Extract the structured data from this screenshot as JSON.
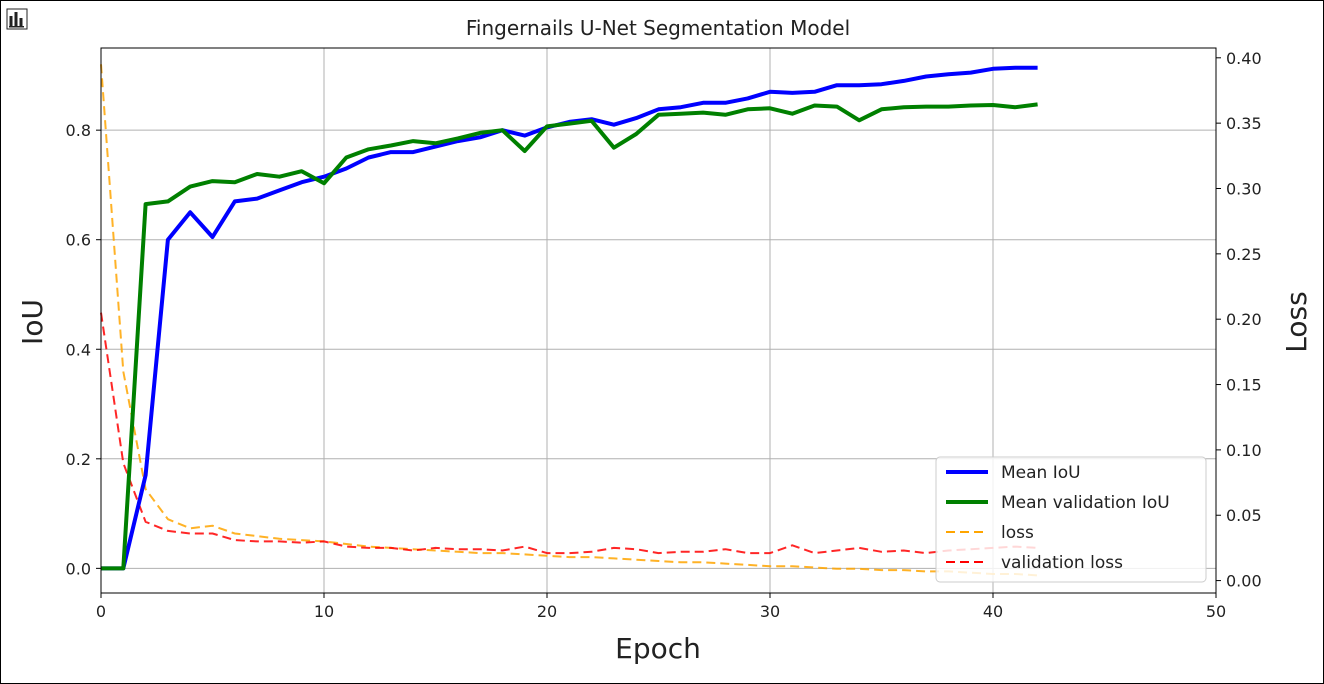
{
  "chart_data": {
    "type": "line",
    "title": "Fingernails U-Net Segmentation Model",
    "xlabel": "Epoch",
    "ylabel_left": "IoU",
    "ylabel_right": "Loss",
    "xlim": [
      0,
      50
    ],
    "ylim_left": [
      -0.045,
      0.95
    ],
    "ylim_right": [
      -0.0095,
      0.4075
    ],
    "x_ticks": [
      "0",
      "10",
      "20",
      "30",
      "40",
      "50"
    ],
    "y_ticks_left": [
      "0.0",
      "0.2",
      "0.4",
      "0.6",
      "0.8"
    ],
    "y_ticks_right": [
      "0.00",
      "0.05",
      "0.10",
      "0.15",
      "0.20",
      "0.25",
      "0.30",
      "0.35",
      "0.40"
    ],
    "grid": true,
    "legend_position": "lower-right",
    "x": [
      0,
      1,
      2,
      3,
      4,
      5,
      6,
      7,
      8,
      9,
      10,
      11,
      12,
      13,
      14,
      15,
      16,
      17,
      18,
      19,
      20,
      21,
      22,
      23,
      24,
      25,
      26,
      27,
      28,
      29,
      30,
      31,
      32,
      33,
      34,
      35,
      36,
      37,
      38,
      39,
      40,
      41,
      42
    ],
    "series": [
      {
        "name": "Mean IoU",
        "axis": "left",
        "color": "#0000ff",
        "style": "solid",
        "values": [
          0.0,
          0.0,
          0.17,
          0.6,
          0.65,
          0.605,
          0.67,
          0.675,
          0.69,
          0.705,
          0.715,
          0.73,
          0.75,
          0.76,
          0.76,
          0.77,
          0.78,
          0.787,
          0.8,
          0.79,
          0.805,
          0.815,
          0.82,
          0.81,
          0.822,
          0.838,
          0.842,
          0.85,
          0.85,
          0.858,
          0.87,
          0.868,
          0.87,
          0.882,
          0.882,
          0.884,
          0.89,
          0.898,
          0.902,
          0.905,
          0.912,
          0.914,
          0.914
        ]
      },
      {
        "name": "Mean validation IoU",
        "axis": "left",
        "color": "#008000",
        "style": "solid",
        "values": [
          0.0,
          0.0,
          0.665,
          0.67,
          0.697,
          0.707,
          0.705,
          0.72,
          0.715,
          0.725,
          0.703,
          0.75,
          0.765,
          0.772,
          0.78,
          0.776,
          0.785,
          0.795,
          0.8,
          0.762,
          0.807,
          0.812,
          0.817,
          0.768,
          0.793,
          0.828,
          0.83,
          0.832,
          0.828,
          0.838,
          0.84,
          0.83,
          0.845,
          0.843,
          0.818,
          0.838,
          0.842,
          0.843,
          0.843,
          0.845,
          0.846,
          0.842,
          0.847
        ]
      },
      {
        "name": "loss",
        "axis": "right",
        "color": "#ffa500",
        "style": "dashed",
        "values": [
          0.395,
          0.16,
          0.07,
          0.047,
          0.04,
          0.042,
          0.036,
          0.034,
          0.032,
          0.031,
          0.03,
          0.028,
          0.026,
          0.025,
          0.024,
          0.023,
          0.022,
          0.021,
          0.021,
          0.02,
          0.019,
          0.018,
          0.018,
          0.017,
          0.016,
          0.015,
          0.014,
          0.014,
          0.013,
          0.012,
          0.011,
          0.011,
          0.01,
          0.009,
          0.009,
          0.008,
          0.008,
          0.007,
          0.007,
          0.006,
          0.005,
          0.005,
          0.004
        ]
      },
      {
        "name": "validation loss",
        "axis": "right",
        "color": "#ff0000",
        "style": "dashed",
        "values": [
          0.205,
          0.09,
          0.045,
          0.038,
          0.036,
          0.036,
          0.031,
          0.03,
          0.03,
          0.029,
          0.03,
          0.026,
          0.025,
          0.025,
          0.023,
          0.025,
          0.024,
          0.024,
          0.023,
          0.026,
          0.021,
          0.021,
          0.022,
          0.025,
          0.024,
          0.021,
          0.022,
          0.022,
          0.024,
          0.021,
          0.021,
          0.027,
          0.021,
          0.023,
          0.025,
          0.022,
          0.023,
          0.021,
          0.023,
          0.024,
          0.025,
          0.026,
          0.025
        ]
      }
    ]
  }
}
